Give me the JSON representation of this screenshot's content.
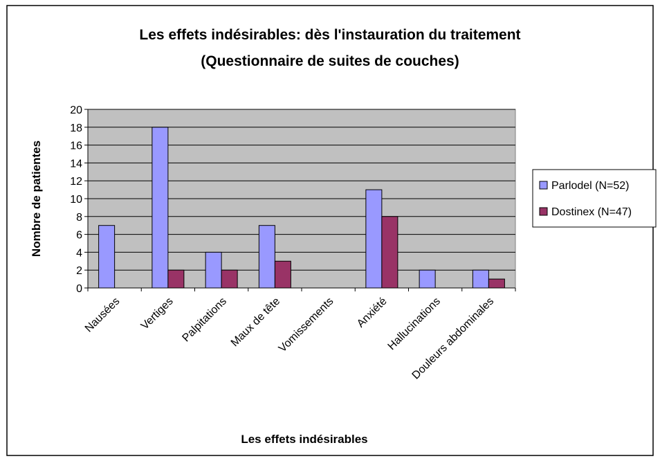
{
  "chart_data": {
    "type": "bar",
    "title": "Les effets indésirables: dès l'instauration du traitement",
    "subtitle": "(Questionnaire de suites de couches)",
    "x_label": "Les effets indésirables",
    "y_label": "Nombre de patientes",
    "categories": [
      "Nausées",
      "Vertiges",
      "Palpitations",
      "Maux de tête",
      "Vomissements",
      "Anxiété",
      "Hallucinations",
      "Douleurs abdominales"
    ],
    "series": [
      {
        "name": "Parlodel (N=52)",
        "color": "#9999ff",
        "values": [
          7,
          18,
          4,
          7,
          0,
          11,
          2,
          2
        ]
      },
      {
        "name": "Dostinex (N=47)",
        "color": "#993366",
        "values": [
          0,
          2,
          2,
          3,
          0,
          8,
          0,
          1
        ]
      }
    ],
    "ylim": [
      0,
      20
    ],
    "yticks": [
      0,
      2,
      4,
      6,
      8,
      10,
      12,
      14,
      16,
      18,
      20
    ],
    "grid": true,
    "legend": "right",
    "plot_background": "#c0c0c0"
  }
}
